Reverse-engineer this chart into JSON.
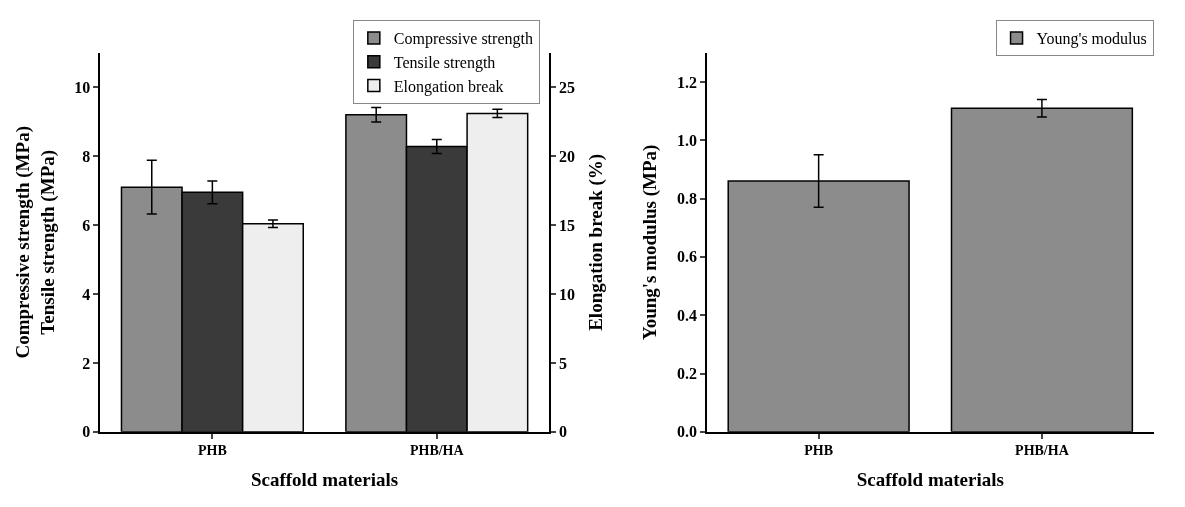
{
  "chart_data": [
    {
      "type": "bar",
      "categories": [
        "PHB",
        "PHB/HA"
      ],
      "xlabel": "Scaffold materials",
      "ylabel": "Compressive strength (MPa)\nTensile strength (MPa)",
      "y2label": "Elongation break (%)",
      "ylim": [
        0,
        11
      ],
      "yticks": [
        0,
        2,
        4,
        6,
        8,
        10
      ],
      "y2lim": [
        0,
        27.5
      ],
      "y2ticks": [
        0,
        5,
        10,
        15,
        20,
        25
      ],
      "legend": "top right",
      "series": [
        {
          "name": "Compressive strength",
          "color": "#8c8c8c",
          "values": [
            7.1,
            9.2
          ],
          "errors": [
            0.78,
            0.21
          ]
        },
        {
          "name": "Tensile strength",
          "color": "#3a3a3a",
          "values": [
            6.95,
            8.28
          ],
          "errors": [
            0.33,
            0.2
          ]
        },
        {
          "name": "Elongation break",
          "color": "#eeeeee",
          "values": [
            15.1,
            23.1
          ],
          "errors": [
            0.27,
            0.3
          ],
          "axis": "y2"
        }
      ]
    },
    {
      "type": "bar",
      "categories": [
        "PHB",
        "PHB/HA"
      ],
      "xlabel": "Scaffold materials",
      "ylabel": "Young's modulus (MPa)",
      "ylim": [
        0,
        1.3
      ],
      "yticks": [
        {
          "value": 0,
          "label": "0.0"
        },
        0.2,
        0.4,
        0.6,
        0.8,
        {
          "value": 1,
          "label": "1.0"
        },
        1.2
      ],
      "legend": "top right",
      "series": [
        {
          "name": "Young's modulus",
          "color": "#8c8c8c",
          "values": [
            0.86,
            1.11
          ],
          "errors": [
            0.09,
            0.03
          ]
        }
      ]
    }
  ]
}
